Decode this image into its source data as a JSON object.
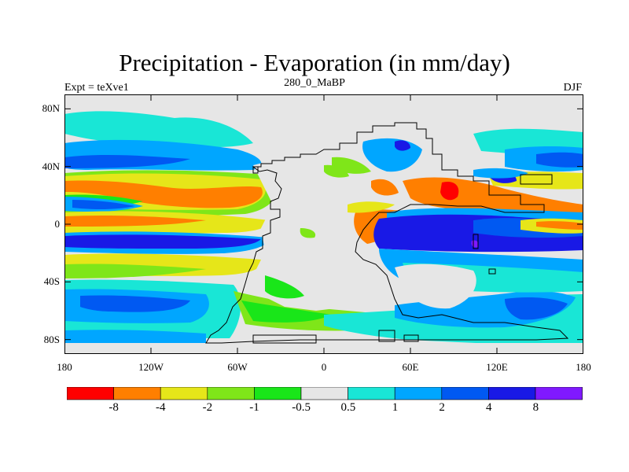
{
  "title": "Precipitation - Evaporation (in mm/day)",
  "subtitle": "280_0_MaBP",
  "left_label": "Expt = teXve1",
  "right_label": "DJF",
  "lat_ticks": [
    {
      "label": "80N",
      "lat": 80
    },
    {
      "label": "40N",
      "lat": 40
    },
    {
      "label": "0",
      "lat": 0
    },
    {
      "label": "40S",
      "lat": -40
    },
    {
      "label": "80S",
      "lat": -80
    }
  ],
  "lon_ticks": [
    {
      "label": "180",
      "lon": -180
    },
    {
      "label": "120W",
      "lon": -120
    },
    {
      "label": "60W",
      "lon": -60
    },
    {
      "label": "0",
      "lon": 0
    },
    {
      "label": "60E",
      "lon": 60
    },
    {
      "label": "120E",
      "lon": 120
    },
    {
      "label": "180",
      "lon": 180
    }
  ],
  "colorbar": {
    "colors": [
      "#ff0000",
      "#ff7f00",
      "#e6e619",
      "#7fe619",
      "#19e619",
      "#e6e6e6",
      "#19e6d6",
      "#00a6ff",
      "#0059f2",
      "#1919e6",
      "#8019ff"
    ],
    "labels": [
      "-8",
      "-4",
      "-2",
      "-1",
      "-0.5",
      "0.5",
      "1",
      "2",
      "4",
      "8"
    ]
  },
  "map_colors": {
    "red": "#ff0000",
    "orange": "#ff7f00",
    "yellow": "#e6e619",
    "lightgreen": "#7fe619",
    "green": "#19e619",
    "gray": "#e6e6e6",
    "cyan": "#19e6d6",
    "sky": "#00a6ff",
    "blue": "#0059f2",
    "darkblue": "#1919e6",
    "purple": "#8019ff"
  }
}
